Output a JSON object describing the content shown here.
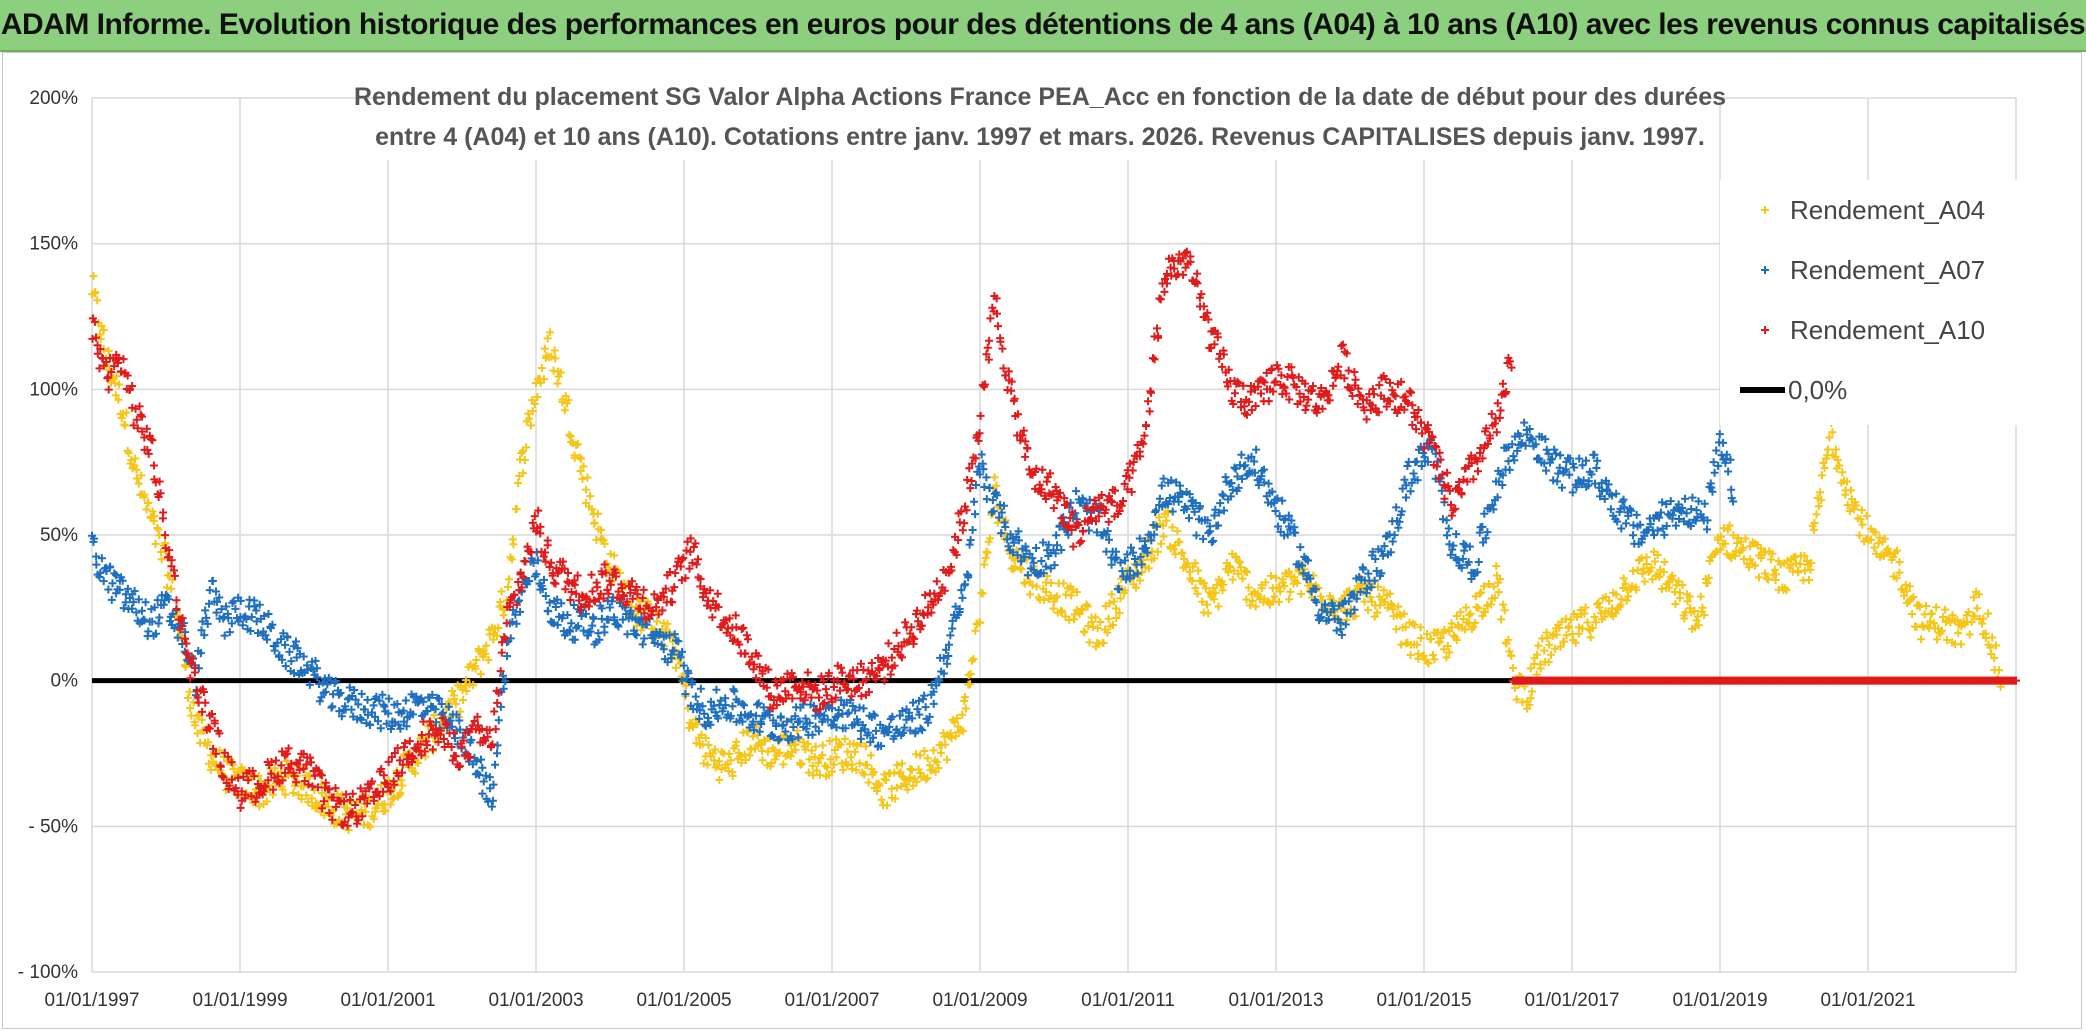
{
  "header": {
    "title": "ADAM Informe. Evolution historique des performances en euros pour des détentions de 4 ans (A04) à 10 ans (A10) avec les revenus connus capitalisés"
  },
  "colors": {
    "header_bg": "#8ccf7e",
    "A04": "#f5c518",
    "A07": "#1f6fbf",
    "A10": "#e01b1b",
    "zero": "#000000",
    "grid": "#d9d9d9"
  },
  "chart_data": {
    "type": "scatter",
    "title_lines": [
      "Rendement du placement SG Valor Alpha Actions France PEA_Acc en fonction de la date de début pour des durées",
      "entre 4 (A04) et 10 ans (A10). Cotations entre janv. 1997 et mars. 2026. Revenus CAPITALISES depuis janv. 1997."
    ],
    "xlabel": "",
    "ylabel": "",
    "xlim": [
      1997.0,
      2023.0
    ],
    "ylim": [
      -100,
      200
    ],
    "x_ticks": [
      1997,
      1999,
      2001,
      2003,
      2005,
      2007,
      2009,
      2011,
      2013,
      2015,
      2017,
      2019,
      2021
    ],
    "x_tick_labels": [
      "01/01/1997",
      "01/01/1999",
      "01/01/2001",
      "01/01/2003",
      "01/01/2005",
      "01/01/2007",
      "01/01/2009",
      "01/01/2011",
      "01/01/2013",
      "01/01/2015",
      "01/01/2017",
      "01/01/2019",
      "01/01/2021"
    ],
    "y_ticks": [
      200,
      150,
      100,
      50,
      0,
      -50,
      -100
    ],
    "y_tick_labels": [
      "200%",
      "150%",
      "100%",
      "50%",
      "0%",
      "- 50%",
      "- 100%"
    ],
    "grid": true,
    "legend_position": "top-right",
    "series": [
      {
        "name": "Rendement_A04",
        "key": "A04",
        "points": [
          [
            1997.0,
            135
          ],
          [
            1997.2,
            110
          ],
          [
            1997.4,
            95
          ],
          [
            1997.6,
            70
          ],
          [
            1997.8,
            55
          ],
          [
            1998.0,
            40
          ],
          [
            1998.2,
            15
          ],
          [
            1998.4,
            -15
          ],
          [
            1998.6,
            -25
          ],
          [
            1998.8,
            -32
          ],
          [
            1999.0,
            -35
          ],
          [
            1999.3,
            -38
          ],
          [
            1999.6,
            -33
          ],
          [
            1999.9,
            -36
          ],
          [
            2000.2,
            -43
          ],
          [
            2000.5,
            -46
          ],
          [
            2000.8,
            -44
          ],
          [
            2001.1,
            -35
          ],
          [
            2001.4,
            -25
          ],
          [
            2001.7,
            -15
          ],
          [
            2002.0,
            -5
          ],
          [
            2002.2,
            5
          ],
          [
            2002.4,
            15
          ],
          [
            2002.6,
            30
          ],
          [
            2002.8,
            75
          ],
          [
            2003.0,
            100
          ],
          [
            2003.2,
            115
          ],
          [
            2003.4,
            95
          ],
          [
            2003.6,
            75
          ],
          [
            2003.8,
            55
          ],
          [
            2004.0,
            40
          ],
          [
            2004.3,
            25
          ],
          [
            2004.6,
            20
          ],
          [
            2004.9,
            10
          ],
          [
            2005.1,
            -15
          ],
          [
            2005.3,
            -25
          ],
          [
            2005.6,
            -30
          ],
          [
            2005.9,
            -20
          ],
          [
            2006.2,
            -25
          ],
          [
            2006.5,
            -22
          ],
          [
            2006.8,
            -28
          ],
          [
            2007.1,
            -25
          ],
          [
            2007.4,
            -25
          ],
          [
            2007.7,
            -38
          ],
          [
            2008.0,
            -33
          ],
          [
            2008.3,
            -28
          ],
          [
            2008.6,
            -20
          ],
          [
            2008.8,
            -10
          ],
          [
            2009.0,
            25
          ],
          [
            2009.2,
            65
          ],
          [
            2009.4,
            45
          ],
          [
            2009.7,
            35
          ],
          [
            2010.0,
            30
          ],
          [
            2010.3,
            25
          ],
          [
            2010.6,
            15
          ],
          [
            2010.9,
            30
          ],
          [
            2011.2,
            40
          ],
          [
            2011.5,
            55
          ],
          [
            2011.8,
            40
          ],
          [
            2012.1,
            25
          ],
          [
            2012.4,
            40
          ],
          [
            2012.7,
            30
          ],
          [
            2013.0,
            30
          ],
          [
            2013.3,
            35
          ],
          [
            2013.6,
            30
          ],
          [
            2013.9,
            25
          ],
          [
            2014.2,
            30
          ],
          [
            2014.5,
            25
          ],
          [
            2014.8,
            15
          ],
          [
            2015.1,
            10
          ],
          [
            2015.4,
            15
          ],
          [
            2015.7,
            25
          ],
          [
            2016.0,
            35
          ],
          [
            2016.2,
            0
          ],
          [
            2016.4,
            -4
          ],
          [
            2016.6,
            10
          ],
          [
            2016.9,
            15
          ],
          [
            2017.2,
            20
          ],
          [
            2017.5,
            25
          ],
          [
            2017.8,
            35
          ],
          [
            2018.1,
            40
          ],
          [
            2018.4,
            30
          ],
          [
            2018.7,
            20
          ],
          [
            2019.0,
            50
          ],
          [
            2019.3,
            45
          ],
          [
            2019.6,
            40
          ],
          [
            2019.9,
            35
          ],
          [
            2020.2,
            40
          ],
          [
            2020.5,
            85
          ],
          [
            2020.8,
            60
          ],
          [
            2021.1,
            45
          ],
          [
            2021.4,
            40
          ],
          [
            2021.7,
            20
          ],
          [
            2022.0,
            20
          ],
          [
            2022.3,
            15
          ],
          [
            2022.5,
            28
          ],
          [
            2022.8,
            0
          ]
        ]
      },
      {
        "name": "Rendement_A07",
        "key": "A07",
        "points": [
          [
            1997.0,
            45
          ],
          [
            1997.2,
            35
          ],
          [
            1997.4,
            30
          ],
          [
            1997.6,
            25
          ],
          [
            1997.8,
            20
          ],
          [
            1998.0,
            25
          ],
          [
            1998.2,
            18
          ],
          [
            1998.4,
            0
          ],
          [
            1998.6,
            30
          ],
          [
            1998.8,
            20
          ],
          [
            1999.0,
            25
          ],
          [
            1999.3,
            20
          ],
          [
            1999.6,
            10
          ],
          [
            1999.9,
            5
          ],
          [
            2000.2,
            -5
          ],
          [
            2000.5,
            -8
          ],
          [
            2000.8,
            -10
          ],
          [
            2001.1,
            -12
          ],
          [
            2001.4,
            -8
          ],
          [
            2001.7,
            -12
          ],
          [
            2002.0,
            -18
          ],
          [
            2002.2,
            -30
          ],
          [
            2002.4,
            -40
          ],
          [
            2002.6,
            10
          ],
          [
            2002.8,
            30
          ],
          [
            2003.0,
            40
          ],
          [
            2003.2,
            25
          ],
          [
            2003.4,
            20
          ],
          [
            2003.6,
            20
          ],
          [
            2003.8,
            18
          ],
          [
            2004.0,
            25
          ],
          [
            2004.3,
            20
          ],
          [
            2004.6,
            15
          ],
          [
            2004.9,
            10
          ],
          [
            2005.1,
            -5
          ],
          [
            2005.3,
            -10
          ],
          [
            2005.6,
            -8
          ],
          [
            2005.9,
            -12
          ],
          [
            2006.2,
            -15
          ],
          [
            2006.5,
            -15
          ],
          [
            2006.8,
            -12
          ],
          [
            2007.1,
            -10
          ],
          [
            2007.4,
            -14
          ],
          [
            2007.7,
            -18
          ],
          [
            2008.0,
            -15
          ],
          [
            2008.3,
            -10
          ],
          [
            2008.6,
            15
          ],
          [
            2008.8,
            30
          ],
          [
            2009.0,
            75
          ],
          [
            2009.2,
            60
          ],
          [
            2009.4,
            50
          ],
          [
            2009.7,
            40
          ],
          [
            2010.0,
            45
          ],
          [
            2010.3,
            60
          ],
          [
            2010.6,
            55
          ],
          [
            2010.9,
            35
          ],
          [
            2011.2,
            45
          ],
          [
            2011.5,
            65
          ],
          [
            2011.8,
            60
          ],
          [
            2012.1,
            50
          ],
          [
            2012.4,
            70
          ],
          [
            2012.7,
            75
          ],
          [
            2013.0,
            60
          ],
          [
            2013.3,
            45
          ],
          [
            2013.6,
            25
          ],
          [
            2013.9,
            20
          ],
          [
            2014.2,
            35
          ],
          [
            2014.5,
            45
          ],
          [
            2014.8,
            70
          ],
          [
            2015.1,
            80
          ],
          [
            2015.4,
            45
          ],
          [
            2015.7,
            40
          ],
          [
            2016.0,
            70
          ],
          [
            2016.2,
            80
          ],
          [
            2016.4,
            85
          ],
          [
            2016.7,
            75
          ],
          [
            2017.0,
            70
          ],
          [
            2017.3,
            72
          ],
          [
            2017.6,
            60
          ],
          [
            2017.9,
            50
          ],
          [
            2018.2,
            55
          ],
          [
            2018.5,
            60
          ],
          [
            2018.8,
            55
          ],
          [
            2019.0,
            80
          ],
          [
            2019.2,
            65
          ]
        ]
      },
      {
        "name": "Rendement_A10",
        "key": "A10",
        "points": [
          [
            1997.0,
            120
          ],
          [
            1997.2,
            105
          ],
          [
            1997.4,
            110
          ],
          [
            1997.6,
            90
          ],
          [
            1997.8,
            80
          ],
          [
            1998.0,
            50
          ],
          [
            1998.2,
            20
          ],
          [
            1998.4,
            0
          ],
          [
            1998.6,
            -15
          ],
          [
            1998.8,
            -30
          ],
          [
            1999.0,
            -38
          ],
          [
            1999.3,
            -35
          ],
          [
            1999.6,
            -28
          ],
          [
            1999.9,
            -30
          ],
          [
            2000.2,
            -42
          ],
          [
            2000.5,
            -45
          ],
          [
            2000.8,
            -40
          ],
          [
            2001.1,
            -30
          ],
          [
            2001.4,
            -20
          ],
          [
            2001.7,
            -18
          ],
          [
            2002.0,
            -25
          ],
          [
            2002.2,
            -18
          ],
          [
            2002.4,
            -22
          ],
          [
            2002.6,
            20
          ],
          [
            2002.8,
            35
          ],
          [
            2003.0,
            55
          ],
          [
            2003.2,
            40
          ],
          [
            2003.4,
            35
          ],
          [
            2003.6,
            30
          ],
          [
            2003.8,
            32
          ],
          [
            2004.0,
            35
          ],
          [
            2004.3,
            30
          ],
          [
            2004.6,
            25
          ],
          [
            2004.9,
            35
          ],
          [
            2005.1,
            45
          ],
          [
            2005.3,
            30
          ],
          [
            2005.6,
            20
          ],
          [
            2005.9,
            10
          ],
          [
            2006.2,
            -5
          ],
          [
            2006.5,
            0
          ],
          [
            2006.8,
            -5
          ],
          [
            2007.1,
            0
          ],
          [
            2007.4,
            0
          ],
          [
            2007.7,
            5
          ],
          [
            2008.0,
            15
          ],
          [
            2008.3,
            25
          ],
          [
            2008.6,
            40
          ],
          [
            2008.8,
            60
          ],
          [
            2009.0,
            90
          ],
          [
            2009.2,
            130
          ],
          [
            2009.4,
            100
          ],
          [
            2009.7,
            70
          ],
          [
            2010.0,
            65
          ],
          [
            2010.3,
            50
          ],
          [
            2010.6,
            60
          ],
          [
            2010.9,
            60
          ],
          [
            2011.2,
            80
          ],
          [
            2011.5,
            140
          ],
          [
            2011.8,
            145
          ],
          [
            2012.1,
            120
          ],
          [
            2012.4,
            100
          ],
          [
            2012.7,
            95
          ],
          [
            2013.0,
            105
          ],
          [
            2013.3,
            100
          ],
          [
            2013.6,
            95
          ],
          [
            2013.9,
            110
          ],
          [
            2014.2,
            95
          ],
          [
            2014.5,
            100
          ],
          [
            2014.8,
            95
          ],
          [
            2015.1,
            80
          ],
          [
            2015.4,
            60
          ],
          [
            2015.7,
            75
          ],
          [
            2016.0,
            90
          ],
          [
            2016.2,
            110
          ]
        ]
      },
      {
        "name": "0,0%",
        "key": "zero",
        "type": "line",
        "points": [
          [
            1997.0,
            0
          ],
          [
            2023.0,
            0
          ]
        ]
      }
    ],
    "zero_overlay": {
      "A10_from": 2016.2,
      "to": 2023.0
    }
  }
}
